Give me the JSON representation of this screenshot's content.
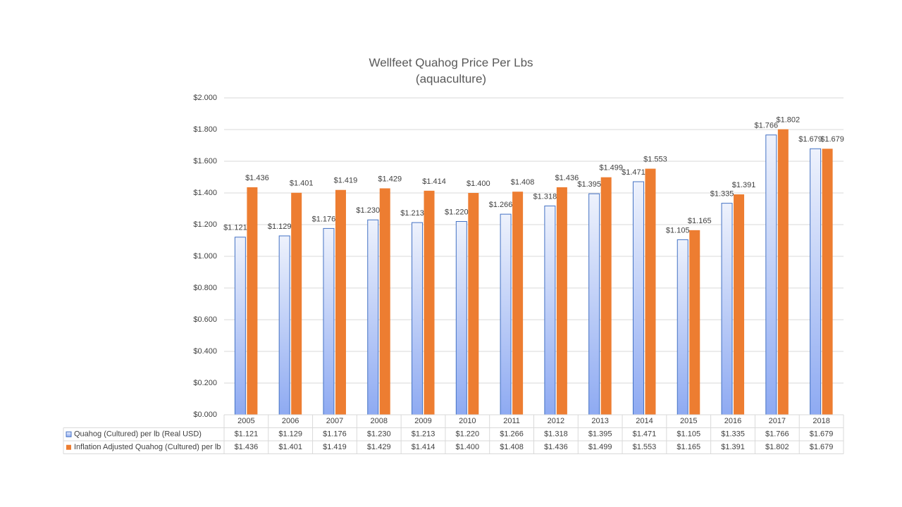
{
  "chart_data": {
    "type": "bar",
    "title": "Wellfeet Quahog Price Per Lbs",
    "subtitle": "(aquaculture)",
    "categories": [
      "2005",
      "2006",
      "2007",
      "2008",
      "2009",
      "2010",
      "2011",
      "2012",
      "2013",
      "2014",
      "2015",
      "2016",
      "2017",
      "2018"
    ],
    "series": [
      {
        "name": "Quahog (Cultured) per lb (Real USD)",
        "color": "#4472c4",
        "values": [
          1.121,
          1.129,
          1.176,
          1.23,
          1.213,
          1.22,
          1.266,
          1.318,
          1.395,
          1.471,
          1.105,
          1.335,
          1.766,
          1.679
        ],
        "value_labels": [
          "$1.121",
          "$1.129",
          "$1.176",
          "$1.230",
          "$1.213",
          "$1.220",
          "$1.266",
          "$1.318",
          "$1.395",
          "$1.471",
          "$1.105",
          "$1.335",
          "$1.766",
          "$1.679"
        ]
      },
      {
        "name": "Inflation Adjusted Quahog (Cultured) per lb",
        "color": "#ed7d31",
        "values": [
          1.436,
          1.401,
          1.419,
          1.429,
          1.414,
          1.4,
          1.408,
          1.436,
          1.499,
          1.553,
          1.165,
          1.391,
          1.802,
          1.679
        ],
        "value_labels": [
          "$1.436",
          "$1.401",
          "$1.419",
          "$1.429",
          "$1.414",
          "$1.400",
          "$1.408",
          "$1.436",
          "$1.499",
          "$1.553",
          "$1.165",
          "$1.391",
          "$1.802",
          "$1.679"
        ]
      }
    ],
    "ylim": [
      0,
      2
    ],
    "yticks": [
      {
        "value": 0,
        "label": "$0.000"
      },
      {
        "value": 0.2,
        "label": "$0.200"
      },
      {
        "value": 0.4,
        "label": "$0.400"
      },
      {
        "value": 0.6,
        "label": "$0.600"
      },
      {
        "value": 0.8,
        "label": "$0.800"
      },
      {
        "value": 1,
        "label": "$1.000"
      },
      {
        "value": 1.2,
        "label": "$1.200"
      },
      {
        "value": 1.4,
        "label": "$1.400"
      },
      {
        "value": 1.6,
        "label": "$1.600"
      },
      {
        "value": 1.8,
        "label": "$1.800"
      },
      {
        "value": 2,
        "label": "$2.000"
      }
    ],
    "grid": true
  }
}
